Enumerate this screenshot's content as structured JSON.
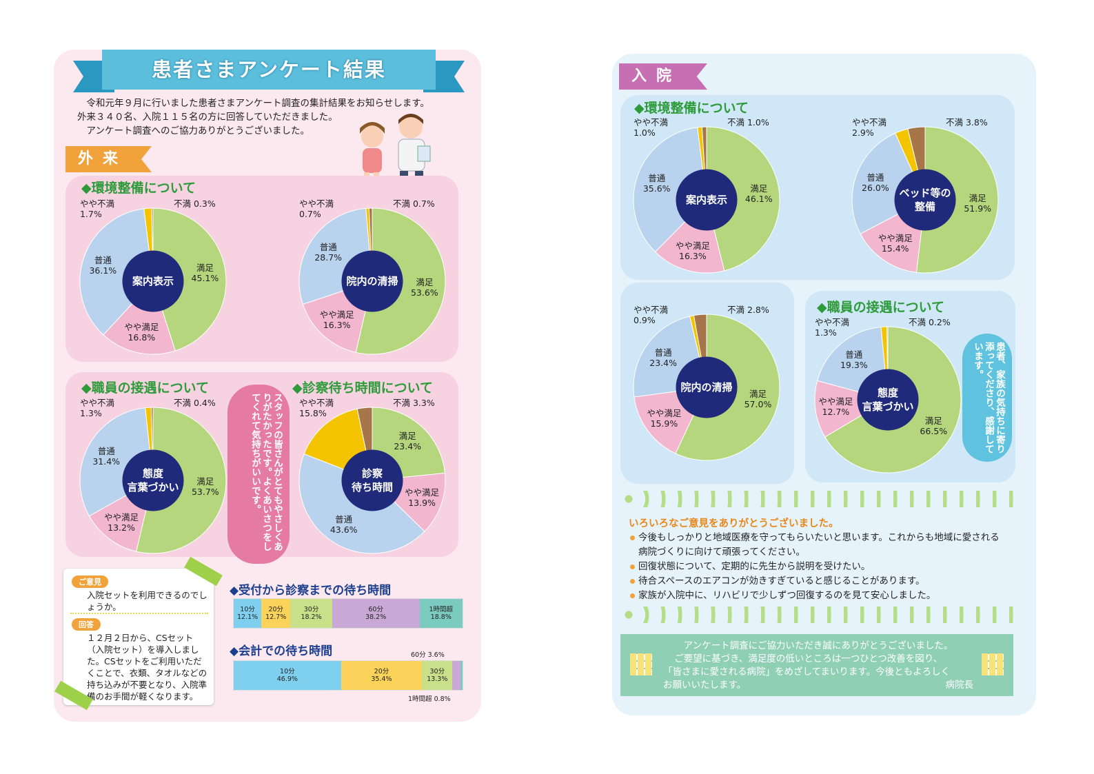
{
  "title": "患者さまアンケート結果",
  "intro": [
    "令和元年９月に行いました患者さまアンケート調査の集計結果をお知らせします。",
    "外来３４０名、入院１１５名の方に回答していただきました。",
    "アンケート調査へのご協力ありがとうございました。"
  ],
  "outpatient": {
    "tag": "外来",
    "sec_env": "◆環境整備について",
    "sec_staff": "◆職員の接遇について",
    "sec_wait": "◆診察待ち時間について",
    "bubble": "スタッフの皆さんがとてもやさしくありがたかったです。よくあいさつをしてくれて気持ちがいいです。"
  },
  "inpatient": {
    "tag": "入院",
    "sec_env": "◆環境整備について",
    "sec_staff": "◆職員の接遇について",
    "bubble": "患者、家族の気持ちに寄り添ってくださり、感謝しています。"
  },
  "colors": {
    "satisfied": "#b5d67c",
    "somewhat_satisfied": "#f2b6cf",
    "normal": "#b9d2ee",
    "somewhat_unsatisfied": "#f5c400",
    "unsatisfied": "#a7754a",
    "center": "#1f2a7a"
  },
  "chart_data": [
    {
      "type": "pie",
      "title": "案内表示",
      "series": [
        {
          "name": "満足",
          "value": 45.1
        },
        {
          "name": "やや満足",
          "value": 16.8
        },
        {
          "name": "普通",
          "value": 36.1
        },
        {
          "name": "やや不満",
          "value": 1.7
        },
        {
          "name": "不満",
          "value": 0.3
        }
      ],
      "labels": [
        "満足",
        "45.1%",
        "やや満足",
        "16.8%",
        "普通",
        "36.1%",
        "やや不満",
        "1.7%",
        "不満 0.3%"
      ]
    },
    {
      "type": "pie",
      "title": "院内の清掃",
      "series": [
        {
          "name": "満足",
          "value": 53.6
        },
        {
          "name": "やや満足",
          "value": 16.3
        },
        {
          "name": "普通",
          "value": 28.7
        },
        {
          "name": "やや不満",
          "value": 0.7
        },
        {
          "name": "不満",
          "value": 0.7
        }
      ],
      "labels": [
        "満足",
        "53.6%",
        "やや満足",
        "16.3%",
        "普通",
        "28.7%",
        "やや不満",
        "0.7%",
        "不満 0.7%"
      ]
    },
    {
      "type": "pie",
      "title": "態度 言葉づかい",
      "series": [
        {
          "name": "満足",
          "value": 53.7
        },
        {
          "name": "やや満足",
          "value": 13.2
        },
        {
          "name": "普通",
          "value": 31.4
        },
        {
          "name": "やや不満",
          "value": 1.3
        },
        {
          "name": "不満",
          "value": 0.4
        }
      ],
      "labels": [
        "満足",
        "53.7%",
        "やや満足",
        "13.2%",
        "普通",
        "31.4%",
        "やや不満",
        "1.3%",
        "不満 0.4%"
      ]
    },
    {
      "type": "pie",
      "title": "診察 待ち時間",
      "series": [
        {
          "name": "満足",
          "value": 23.4
        },
        {
          "name": "やや満足",
          "value": 13.9
        },
        {
          "name": "普通",
          "value": 43.6
        },
        {
          "name": "やや不満",
          "value": 15.8
        },
        {
          "name": "不満",
          "value": 3.3
        }
      ],
      "labels": [
        "満足",
        "23.4%",
        "やや満足",
        "13.9%",
        "普通",
        "43.6%",
        "やや不満",
        "15.8%",
        "不満 3.3%"
      ]
    },
    {
      "type": "pie",
      "title": "案内表示",
      "series": [
        {
          "name": "満足",
          "value": 46.1
        },
        {
          "name": "やや満足",
          "value": 16.3
        },
        {
          "name": "普通",
          "value": 35.6
        },
        {
          "name": "やや不満",
          "value": 1.0
        },
        {
          "name": "不満",
          "value": 1.0
        }
      ],
      "labels": [
        "満足",
        "46.1%",
        "やや満足",
        "16.3%",
        "普通",
        "35.6%",
        "やや不満",
        "1.0%",
        "不満 1.0%"
      ]
    },
    {
      "type": "pie",
      "title": "ベッド等の 整備",
      "series": [
        {
          "name": "満足",
          "value": 51.9
        },
        {
          "name": "やや満足",
          "value": 15.4
        },
        {
          "name": "普通",
          "value": 26.0
        },
        {
          "name": "やや不満",
          "value": 2.9
        },
        {
          "name": "不満",
          "value": 3.8
        }
      ],
      "labels": [
        "満足",
        "51.9%",
        "やや満足",
        "15.4%",
        "普通",
        "26.0%",
        "やや不満",
        "2.9%",
        "不満 3.8%"
      ]
    },
    {
      "type": "pie",
      "title": "院内の清掃",
      "series": [
        {
          "name": "満足",
          "value": 57.0
        },
        {
          "name": "やや満足",
          "value": 15.9
        },
        {
          "name": "普通",
          "value": 23.4
        },
        {
          "name": "やや不満",
          "value": 0.9
        },
        {
          "name": "不満",
          "value": 2.8
        }
      ],
      "labels": [
        "満足",
        "57.0%",
        "やや満足",
        "15.9%",
        "普通",
        "23.4%",
        "やや不満",
        "0.9%",
        "不満 2.8%"
      ]
    },
    {
      "type": "pie",
      "title": "態度 言葉づかい",
      "series": [
        {
          "name": "満足",
          "value": 66.5
        },
        {
          "name": "やや満足",
          "value": 12.7
        },
        {
          "name": "普通",
          "value": 19.3
        },
        {
          "name": "やや不満",
          "value": 1.3
        },
        {
          "name": "不満",
          "value": 0.2
        }
      ],
      "labels": [
        "満足",
        "66.5%",
        "やや満足",
        "12.7%",
        "普通",
        "19.3%",
        "やや不満",
        "1.3%",
        "不満 0.2%"
      ]
    },
    {
      "type": "bar",
      "title": "◆受付から診察までの待ち時間",
      "categories": [
        "10分",
        "20分",
        "30分",
        "60分",
        "1時間超"
      ],
      "values": [
        12.1,
        12.7,
        18.2,
        38.2,
        18.8
      ],
      "labels": [
        "12.1%",
        "12.7%",
        "18.2%",
        "38.2%",
        "18.8%"
      ]
    },
    {
      "type": "bar",
      "title": "◆会計での待ち時間",
      "categories": [
        "10分",
        "20分",
        "30分",
        "60分",
        "1時間超"
      ],
      "values": [
        46.9,
        35.4,
        13.3,
        3.6,
        0.8
      ],
      "labels": [
        "46.9%",
        "35.4%",
        "13.3%",
        "60分 3.6%",
        "1時間超 0.8%"
      ]
    }
  ],
  "note": {
    "q_label": "ご意見",
    "q_text": "入院セットを利用できるのでしょうか。",
    "a_label": "回答",
    "a_text": "１２月２日から、CSセット（入院セット）を導入しました。CSセットをご利用いただくことで、衣類、タオルなどの持ち込みが不要となり、入院準備のお手間が軽くなります。"
  },
  "opinions": {
    "heading": "いろいろなご意見をありがとうございました。",
    "items": [
      "今後もしっかりと地域医療を守ってもらいたいと思います。これからも地域に愛される病院づくりに向けて頑張ってください。",
      "回復状態について、定期的に先生から説明を受けたい。",
      "待合スペースのエアコンが効きすぎていると感じることがあります。",
      "家族が入院中に、リハビリで少しずつ回復するのを見て安心しました。"
    ]
  },
  "thanks": {
    "lines": [
      "アンケート調査にご協力いただき誠にありがとうございました。",
      "ご要望に基づき、満足度の低いところは一つひとつ改善を図り、",
      "「皆さまに愛される病院」をめざしてまいります。今後ともよろしく",
      "お願いいたします。"
    ],
    "sign": "病院長"
  }
}
